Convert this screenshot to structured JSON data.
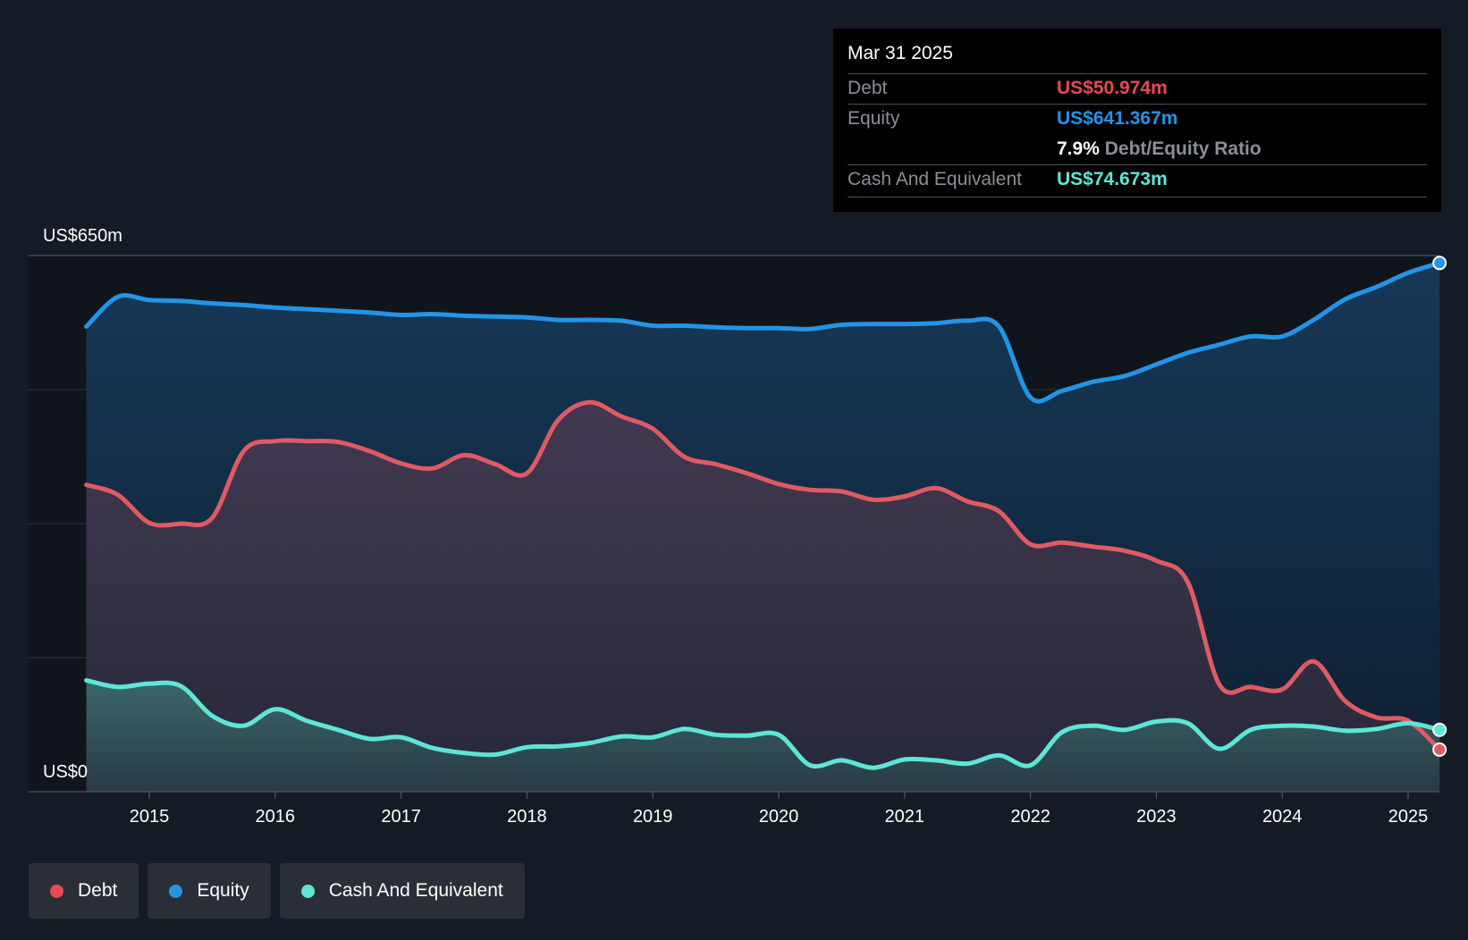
{
  "tooltip": {
    "date": "Mar 31 2025",
    "debt_label": "Debt",
    "debt_value": "US$50.974m",
    "equity_label": "Equity",
    "equity_value": "US$641.367m",
    "ratio_value": "7.9%",
    "ratio_label": "Debt/Equity Ratio",
    "cash_label": "Cash And Equivalent",
    "cash_value": "US$74.673m"
  },
  "legend": [
    {
      "label": "Debt",
      "color": "#e64a52"
    },
    {
      "label": "Equity",
      "color": "#2394e6"
    },
    {
      "label": "Cash And Equivalent",
      "color": "#5de6d4"
    }
  ],
  "chart_data": {
    "type": "area",
    "y_top_label": "US$650m",
    "y_bottom_label": "US$0",
    "ylim": [
      0,
      650
    ],
    "xlim": [
      2014.0,
      2025.25
    ],
    "x_ticks": [
      2015,
      2016,
      2017,
      2018,
      2019,
      2020,
      2021,
      2022,
      2023,
      2024,
      2025
    ],
    "grid": true,
    "colors": {
      "debt": "#e05a64",
      "equity": "#2394e6",
      "cash": "#5de6d4"
    },
    "series": [
      {
        "name": "Equity",
        "key": "equity",
        "x": [
          2014.5,
          2014.75,
          2015.0,
          2015.25,
          2015.5,
          2015.75,
          2016.0,
          2016.25,
          2016.5,
          2016.75,
          2017.0,
          2017.25,
          2017.5,
          2017.75,
          2018.0,
          2018.25,
          2018.5,
          2018.75,
          2019.0,
          2019.25,
          2019.5,
          2019.75,
          2020.0,
          2020.25,
          2020.5,
          2020.75,
          2021.0,
          2021.25,
          2021.5,
          2021.75,
          2022.0,
          2022.25,
          2022.5,
          2022.75,
          2023.0,
          2023.25,
          2023.5,
          2023.75,
          2024.0,
          2024.25,
          2024.5,
          2024.75,
          2025.0,
          2025.25
        ],
        "values": [
          564,
          600,
          596,
          595,
          592,
          590,
          587,
          585,
          583,
          581,
          578,
          579,
          577,
          576,
          575,
          572,
          572,
          571,
          565,
          565,
          563,
          562,
          562,
          561,
          566,
          567,
          567,
          568,
          571,
          564,
          478,
          486,
          497,
          504,
          518,
          532,
          542,
          552,
          552,
          572,
          597,
          612,
          629,
          641
        ]
      },
      {
        "name": "Debt",
        "key": "debt",
        "x": [
          2014.5,
          2014.75,
          2015.0,
          2015.25,
          2015.5,
          2015.75,
          2016.0,
          2016.25,
          2016.5,
          2016.75,
          2017.0,
          2017.25,
          2017.5,
          2017.75,
          2018.0,
          2018.25,
          2018.5,
          2018.75,
          2019.0,
          2019.25,
          2019.5,
          2019.75,
          2020.0,
          2020.25,
          2020.5,
          2020.75,
          2021.0,
          2021.25,
          2021.5,
          2021.75,
          2022.0,
          2022.25,
          2022.5,
          2022.75,
          2023.0,
          2023.25,
          2023.5,
          2023.75,
          2024.0,
          2024.25,
          2024.5,
          2024.75,
          2025.0,
          2025.25
        ],
        "values": [
          372,
          360,
          326,
          325,
          332,
          413,
          425,
          425,
          424,
          413,
          398,
          392,
          408,
          397,
          386,
          451,
          472,
          455,
          440,
          406,
          397,
          386,
          373,
          366,
          364,
          354,
          358,
          368,
          352,
          340,
          300,
          302,
          297,
          292,
          280,
          254,
          130,
          127,
          124,
          158,
          110,
          90,
          86,
          51
        ]
      },
      {
        "name": "Cash And Equivalent",
        "key": "cash",
        "x": [
          2014.5,
          2014.75,
          2015.0,
          2015.25,
          2015.5,
          2015.75,
          2016.0,
          2016.25,
          2016.5,
          2016.75,
          2017.0,
          2017.25,
          2017.5,
          2017.75,
          2018.0,
          2018.25,
          2018.5,
          2018.75,
          2019.0,
          2019.25,
          2019.5,
          2019.75,
          2020.0,
          2020.25,
          2020.5,
          2020.75,
          2021.0,
          2021.25,
          2021.5,
          2021.75,
          2022.0,
          2022.25,
          2022.5,
          2022.75,
          2023.0,
          2023.25,
          2023.5,
          2023.75,
          2024.0,
          2024.25,
          2024.5,
          2024.75,
          2025.0,
          2025.25
        ],
        "values": [
          135,
          127,
          131,
          128,
          92,
          80,
          100,
          86,
          75,
          64,
          66,
          53,
          47,
          45,
          54,
          55,
          59,
          67,
          66,
          76,
          69,
          68,
          69,
          32,
          38,
          29,
          39,
          38,
          34,
          44,
          32,
          72,
          80,
          75,
          85,
          83,
          52,
          75,
          80,
          79,
          74,
          76,
          83,
          75
        ]
      }
    ]
  }
}
